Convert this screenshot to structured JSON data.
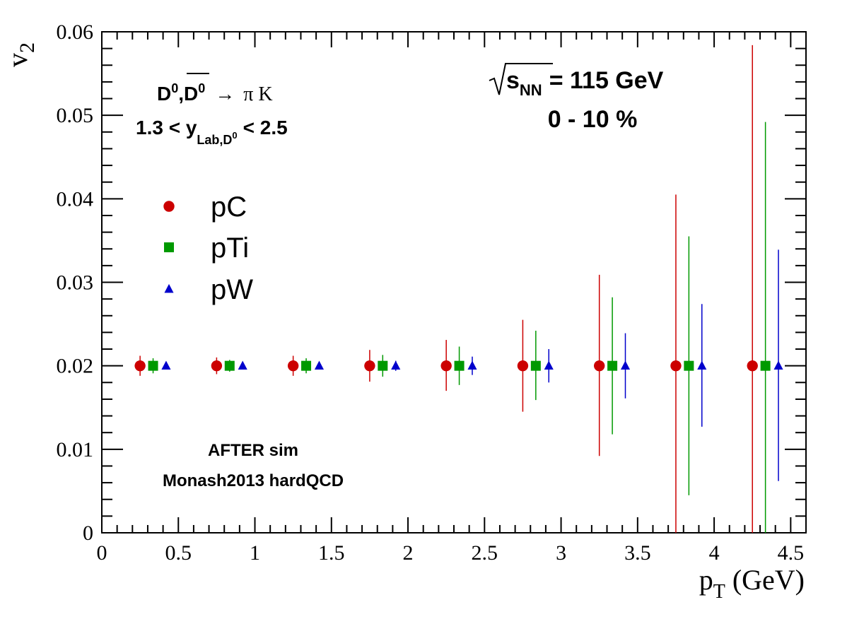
{
  "chart_data": {
    "type": "scatter",
    "xlabel": {
      "main": "p",
      "sub": "T",
      "unit": "(GeV)"
    },
    "ylabel": {
      "main": "v",
      "sub": "2"
    },
    "xlim": [
      0,
      4.6
    ],
    "ylim": [
      0,
      0.06
    ],
    "x_ticks": [
      {
        "v": 0,
        "label": "0"
      },
      {
        "v": 0.5,
        "label": "0.5"
      },
      {
        "v": 1,
        "label": "1"
      },
      {
        "v": 1.5,
        "label": "1.5"
      },
      {
        "v": 2,
        "label": "2"
      },
      {
        "v": 2.5,
        "label": "2.5"
      },
      {
        "v": 3,
        "label": "3"
      },
      {
        "v": 3.5,
        "label": "3.5"
      },
      {
        "v": 4,
        "label": "4"
      },
      {
        "v": 4.5,
        "label": "4.5"
      }
    ],
    "y_ticks": [
      {
        "v": 0,
        "label": "0"
      },
      {
        "v": 0.01,
        "label": "0.01"
      },
      {
        "v": 0.02,
        "label": "0.02"
      },
      {
        "v": 0.03,
        "label": "0.03"
      },
      {
        "v": 0.04,
        "label": "0.04"
      },
      {
        "v": 0.05,
        "label": "0.05"
      },
      {
        "v": 0.06,
        "label": "0.06"
      }
    ],
    "series": [
      {
        "name": "pC",
        "marker": "circle",
        "color": "#cc0000",
        "x": [
          0.25,
          0.75,
          1.25,
          1.75,
          2.25,
          2.75,
          3.25,
          3.75,
          4.25
        ],
        "y": [
          0.02,
          0.02,
          0.02,
          0.02,
          0.02,
          0.02,
          0.02,
          0.02,
          0.02
        ],
        "err_low": [
          0.0012,
          0.001,
          0.0012,
          0.0019,
          0.003,
          0.0055,
          0.0108,
          0.021,
          0.021
        ],
        "err_high": [
          0.0012,
          0.001,
          0.0012,
          0.0019,
          0.0031,
          0.0055,
          0.0109,
          0.0205,
          0.0384
        ]
      },
      {
        "name": "pTi",
        "marker": "square",
        "color": "#009900",
        "x": [
          0.335,
          0.835,
          1.335,
          1.835,
          2.335,
          2.835,
          3.335,
          3.835,
          4.335
        ],
        "y": [
          0.02,
          0.02,
          0.02,
          0.02,
          0.02,
          0.02,
          0.02,
          0.02,
          0.02
        ],
        "err_low": [
          0.0009,
          0.0007,
          0.0009,
          0.0013,
          0.0023,
          0.0041,
          0.0082,
          0.0155,
          0.021
        ],
        "err_high": [
          0.0009,
          0.0007,
          0.0009,
          0.0013,
          0.0023,
          0.0042,
          0.0082,
          0.0155,
          0.0292
        ]
      },
      {
        "name": "pW",
        "marker": "triangle",
        "color": "#0000cc",
        "x": [
          0.42,
          0.92,
          1.42,
          1.92,
          2.42,
          2.92,
          3.42,
          3.92,
          4.42
        ],
        "y": [
          0.02,
          0.02,
          0.02,
          0.02,
          0.02,
          0.02,
          0.02,
          0.02,
          0.02
        ],
        "err_low": [
          0.0004,
          0.0004,
          0.0004,
          0.0006,
          0.0011,
          0.002,
          0.0039,
          0.0073,
          0.0138
        ],
        "err_high": [
          0.0004,
          0.0004,
          0.0004,
          0.0006,
          0.0011,
          0.002,
          0.0039,
          0.0074,
          0.0139
        ]
      }
    ],
    "legend": {
      "placement": "upper-left",
      "entries": [
        "pC",
        "pTi",
        "pW"
      ]
    },
    "annotations": {
      "decay": {
        "d0": "D",
        "d0_sup": "0",
        "comma": ",",
        "d0bar": "D",
        "d0bar_sup": "0",
        "arrow": "→",
        "products": "π K"
      },
      "rapidity": {
        "left": "1.3 < y",
        "sub": "Lab,D",
        "sub_sup": "0",
        "right": "< 2.5"
      },
      "energy": {
        "root": "√",
        "s": "s",
        "s_sub": "NN",
        "value": "= 115 GeV"
      },
      "centrality": "0 - 10 %",
      "sim_line1": "AFTER sim",
      "sim_line2": "Monash2013 hardQCD"
    }
  }
}
